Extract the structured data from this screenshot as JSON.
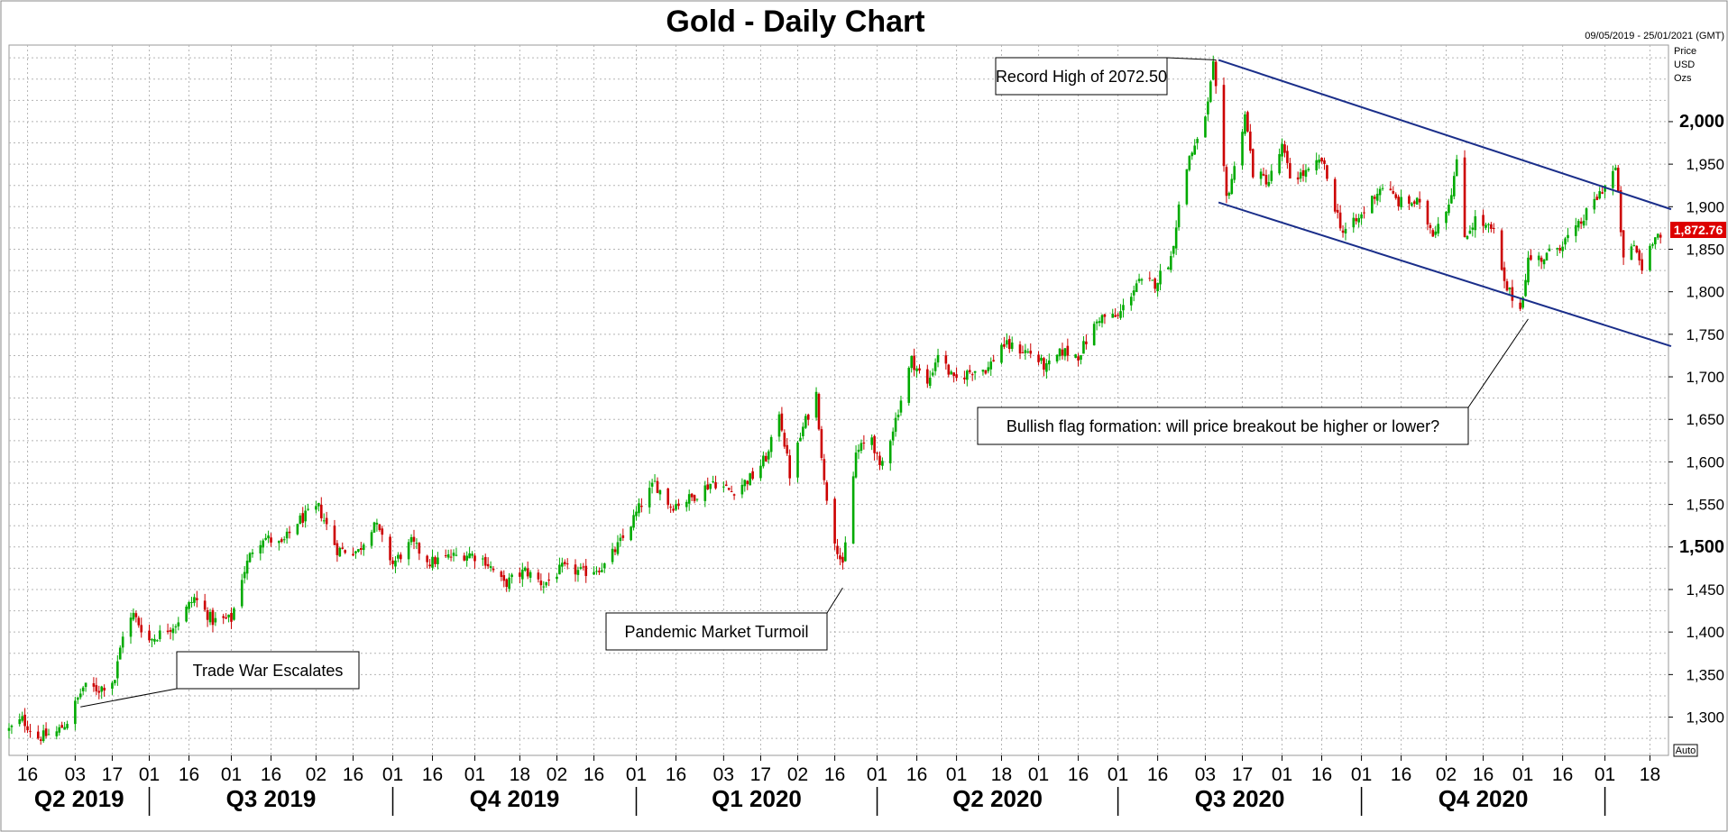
{
  "chart_data": {
    "type": "candlestick",
    "title": "Gold - Daily Chart",
    "date_range": "09/05/2019 - 25/01/2021 (GMT)",
    "price_label": [
      "Price",
      "USD",
      "Ozs"
    ],
    "auto_label": "Auto",
    "last_price": "1,872.76",
    "ylim": [
      1255,
      2090
    ],
    "yticks": [
      {
        "value": 1300,
        "label": "1,300",
        "bold": false
      },
      {
        "value": 1350,
        "label": "1,350",
        "bold": false
      },
      {
        "value": 1400,
        "label": "1,400",
        "bold": false
      },
      {
        "value": 1450,
        "label": "1,450",
        "bold": false
      },
      {
        "value": 1500,
        "label": "1,500",
        "bold": true
      },
      {
        "value": 1550,
        "label": "1,550",
        "bold": false
      },
      {
        "value": 1600,
        "label": "1,600",
        "bold": false
      },
      {
        "value": 1650,
        "label": "1,650",
        "bold": false
      },
      {
        "value": 1700,
        "label": "1,700",
        "bold": false
      },
      {
        "value": 1750,
        "label": "1,750",
        "bold": false
      },
      {
        "value": 1800,
        "label": "1,800",
        "bold": false
      },
      {
        "value": 1850,
        "label": "1,850",
        "bold": false
      },
      {
        "value": 1900,
        "label": "1,900",
        "bold": false
      },
      {
        "value": 1950,
        "label": "1,950",
        "bold": false
      },
      {
        "value": 2000,
        "label": "2,000",
        "bold": true
      }
    ],
    "xlim": [
      "2019-05-09",
      "2021-01-25"
    ],
    "xticks": [
      {
        "date": "2019-05-16",
        "label": "16"
      },
      {
        "date": "2019-06-03",
        "label": "03"
      },
      {
        "date": "2019-06-17",
        "label": "17"
      },
      {
        "date": "2019-07-01",
        "label": "01"
      },
      {
        "date": "2019-07-16",
        "label": "16"
      },
      {
        "date": "2019-08-01",
        "label": "01"
      },
      {
        "date": "2019-08-16",
        "label": "16"
      },
      {
        "date": "2019-09-02",
        "label": "02"
      },
      {
        "date": "2019-09-16",
        "label": "16"
      },
      {
        "date": "2019-10-01",
        "label": "01"
      },
      {
        "date": "2019-10-16",
        "label": "16"
      },
      {
        "date": "2019-11-01",
        "label": "01"
      },
      {
        "date": "2019-11-18",
        "label": "18"
      },
      {
        "date": "2019-12-02",
        "label": "02"
      },
      {
        "date": "2019-12-16",
        "label": "16"
      },
      {
        "date": "2020-01-01",
        "label": "01"
      },
      {
        "date": "2020-01-16",
        "label": "16"
      },
      {
        "date": "2020-02-03",
        "label": "03"
      },
      {
        "date": "2020-02-17",
        "label": "17"
      },
      {
        "date": "2020-03-02",
        "label": "02"
      },
      {
        "date": "2020-03-16",
        "label": "16"
      },
      {
        "date": "2020-04-01",
        "label": "01"
      },
      {
        "date": "2020-04-16",
        "label": "16"
      },
      {
        "date": "2020-05-01",
        "label": "01"
      },
      {
        "date": "2020-05-18",
        "label": "18"
      },
      {
        "date": "2020-06-01",
        "label": "01"
      },
      {
        "date": "2020-06-16",
        "label": "16"
      },
      {
        "date": "2020-07-01",
        "label": "01"
      },
      {
        "date": "2020-07-16",
        "label": "16"
      },
      {
        "date": "2020-08-03",
        "label": "03"
      },
      {
        "date": "2020-08-17",
        "label": "17"
      },
      {
        "date": "2020-09-01",
        "label": "01"
      },
      {
        "date": "2020-09-16",
        "label": "16"
      },
      {
        "date": "2020-10-01",
        "label": "01"
      },
      {
        "date": "2020-10-16",
        "label": "16"
      },
      {
        "date": "2020-11-02",
        "label": "02"
      },
      {
        "date": "2020-11-16",
        "label": "16"
      },
      {
        "date": "2020-12-01",
        "label": "01"
      },
      {
        "date": "2020-12-16",
        "label": "16"
      },
      {
        "date": "2021-01-01",
        "label": "01"
      },
      {
        "date": "2021-01-18",
        "label": "18"
      }
    ],
    "quarters": [
      {
        "label": "Q2 2019",
        "start": "2019-05-09",
        "end": "2019-07-01"
      },
      {
        "label": "Q3 2019",
        "start": "2019-07-01",
        "end": "2019-10-01"
      },
      {
        "label": "Q4 2019",
        "start": "2019-10-01",
        "end": "2020-01-01"
      },
      {
        "label": "Q1 2020",
        "start": "2020-01-01",
        "end": "2020-04-01"
      },
      {
        "label": "Q2 2020",
        "start": "2020-04-01",
        "end": "2020-07-01"
      },
      {
        "label": "Q3 2020",
        "start": "2020-07-01",
        "end": "2020-10-01"
      },
      {
        "label": "Q4 2020",
        "start": "2020-10-01",
        "end": "2021-01-01"
      }
    ],
    "price_path": [
      [
        "2019-05-09",
        1285
      ],
      [
        "2019-05-14",
        1297
      ],
      [
        "2019-05-20",
        1276
      ],
      [
        "2019-05-27",
        1282
      ],
      [
        "2019-05-31",
        1295
      ],
      [
        "2019-06-06",
        1335
      ],
      [
        "2019-06-12",
        1333
      ],
      [
        "2019-06-18",
        1345
      ],
      [
        "2019-06-21",
        1398
      ],
      [
        "2019-06-25",
        1420
      ],
      [
        "2019-07-01",
        1390
      ],
      [
        "2019-07-05",
        1398
      ],
      [
        "2019-07-11",
        1410
      ],
      [
        "2019-07-18",
        1440
      ],
      [
        "2019-07-25",
        1413
      ],
      [
        "2019-08-01",
        1415
      ],
      [
        "2019-08-05",
        1465
      ],
      [
        "2019-08-09",
        1497
      ],
      [
        "2019-08-13",
        1512
      ],
      [
        "2019-08-20",
        1502
      ],
      [
        "2019-08-26",
        1530
      ],
      [
        "2019-09-03",
        1546
      ],
      [
        "2019-09-10",
        1497
      ],
      [
        "2019-09-18",
        1495
      ],
      [
        "2019-09-24",
        1530
      ],
      [
        "2019-10-01",
        1480
      ],
      [
        "2019-10-08",
        1505
      ],
      [
        "2019-10-15",
        1482
      ],
      [
        "2019-10-22",
        1488
      ],
      [
        "2019-10-30",
        1492
      ],
      [
        "2019-11-05",
        1484
      ],
      [
        "2019-11-12",
        1456
      ],
      [
        "2019-11-20",
        1472
      ],
      [
        "2019-11-27",
        1456
      ],
      [
        "2019-12-04",
        1475
      ],
      [
        "2019-12-12",
        1470
      ],
      [
        "2019-12-20",
        1478
      ],
      [
        "2019-12-27",
        1510
      ],
      [
        "2020-01-03",
        1551
      ],
      [
        "2020-01-08",
        1575
      ],
      [
        "2020-01-14",
        1548
      ],
      [
        "2020-01-22",
        1558
      ],
      [
        "2020-01-30",
        1577
      ],
      [
        "2020-02-06",
        1565
      ],
      [
        "2020-02-14",
        1583
      ],
      [
        "2020-02-20",
        1610
      ],
      [
        "2020-02-24",
        1660
      ],
      [
        "2020-02-28",
        1585
      ],
      [
        "2020-03-04",
        1640
      ],
      [
        "2020-03-09",
        1680
      ],
      [
        "2020-03-12",
        1575
      ],
      [
        "2020-03-16",
        1510
      ],
      [
        "2020-03-19",
        1475
      ],
      [
        "2020-03-24",
        1610
      ],
      [
        "2020-03-30",
        1630
      ],
      [
        "2020-04-02",
        1590
      ],
      [
        "2020-04-08",
        1650
      ],
      [
        "2020-04-14",
        1720
      ],
      [
        "2020-04-20",
        1690
      ],
      [
        "2020-04-24",
        1728
      ],
      [
        "2020-04-30",
        1695
      ],
      [
        "2020-05-07",
        1708
      ],
      [
        "2020-05-13",
        1710
      ],
      [
        "2020-05-18",
        1738
      ],
      [
        "2020-05-22",
        1735
      ],
      [
        "2020-05-29",
        1728
      ],
      [
        "2020-06-04",
        1710
      ],
      [
        "2020-06-10",
        1730
      ],
      [
        "2020-06-16",
        1725
      ],
      [
        "2020-06-24",
        1770
      ],
      [
        "2020-07-01",
        1770
      ],
      [
        "2020-07-08",
        1810
      ],
      [
        "2020-07-15",
        1810
      ],
      [
        "2020-07-21",
        1840
      ],
      [
        "2020-07-24",
        1900
      ],
      [
        "2020-07-28",
        1960
      ],
      [
        "2020-07-31",
        1975
      ],
      [
        "2020-08-04",
        2020
      ],
      [
        "2020-08-06",
        2065
      ],
      [
        "2020-08-07",
        2035
      ],
      [
        "2020-08-11",
        1910
      ],
      [
        "2020-08-14",
        1945
      ],
      [
        "2020-08-18",
        2010
      ],
      [
        "2020-08-21",
        1940
      ],
      [
        "2020-08-27",
        1930
      ],
      [
        "2020-09-01",
        1970
      ],
      [
        "2020-09-04",
        1935
      ],
      [
        "2020-09-11",
        1940
      ],
      [
        "2020-09-16",
        1955
      ],
      [
        "2020-09-21",
        1900
      ],
      [
        "2020-09-24",
        1870
      ],
      [
        "2020-09-30",
        1885
      ],
      [
        "2020-10-05",
        1910
      ],
      [
        "2020-10-09",
        1925
      ],
      [
        "2020-10-15",
        1905
      ],
      [
        "2020-10-22",
        1905
      ],
      [
        "2020-10-28",
        1870
      ],
      [
        "2020-11-03",
        1905
      ],
      [
        "2020-11-06",
        1950
      ],
      [
        "2020-11-09",
        1865
      ],
      [
        "2020-11-13",
        1885
      ],
      [
        "2020-11-20",
        1870
      ],
      [
        "2020-11-24",
        1808
      ],
      [
        "2020-11-30",
        1780
      ],
      [
        "2020-12-03",
        1838
      ],
      [
        "2020-12-09",
        1840
      ],
      [
        "2020-12-15",
        1855
      ],
      [
        "2020-12-21",
        1872
      ],
      [
        "2021-01-05",
        1945
      ],
      [
        "2021-01-06",
        1912
      ],
      [
        "2021-01-08",
        1835
      ],
      [
        "2021-01-12",
        1855
      ],
      [
        "2021-01-15",
        1828
      ],
      [
        "2021-01-20",
        1870
      ],
      [
        "2021-01-25",
        1855
      ]
    ],
    "channel": {
      "upper": [
        [
          "2020-08-08",
          2072.5
        ],
        [
          "2021-01-26",
          1897
        ]
      ],
      "lower": [
        [
          "2020-08-08",
          1905
        ],
        [
          "2021-01-26",
          1736
        ]
      ]
    },
    "colors": {
      "up": "#00aa00",
      "down": "#cc0000",
      "channel": "#1a2e8a",
      "grid": "#b5b5b5",
      "badge": "#dd0000"
    },
    "annotations": [
      {
        "text": "Record High of 2072.50",
        "date": "2020-08-07",
        "value": 2072.5
      },
      {
        "text": "Trade War Escalates",
        "date": "2019-06-05",
        "value": 1312
      },
      {
        "text": "Pandemic Market Turmoil",
        "date": "2020-03-19",
        "value": 1452
      },
      {
        "text": "Bullish flag formation: will price breakout be higher or lower?",
        "date": "2020-12-03",
        "value": 1768
      }
    ]
  }
}
